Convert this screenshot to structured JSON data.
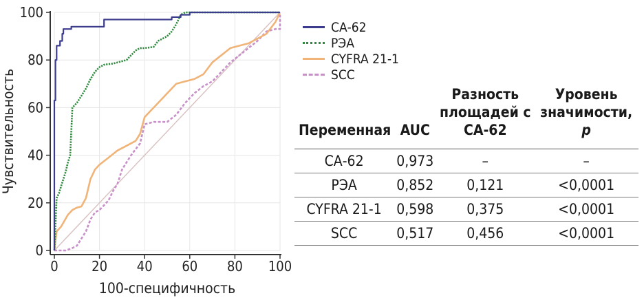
{
  "chart_data": {
    "type": "line",
    "xlabel": "100-специфичность",
    "ylabel": "Чувствительность",
    "xlim": [
      0,
      100
    ],
    "ylim": [
      0,
      100
    ],
    "xticks": [
      "0",
      "20",
      "40",
      "60",
      "80",
      "100"
    ],
    "yticks": [
      "0",
      "20",
      "40",
      "60",
      "80",
      "100"
    ],
    "grid": true,
    "legend_position": "right",
    "series": [
      {
        "name": "СА-62",
        "color": "#3b3d8c",
        "dash": "solid",
        "x": [
          0,
          0,
          0.5,
          0.5,
          1,
          1,
          2.5,
          2.5,
          3.5,
          3.5,
          4,
          4,
          7.5,
          7.5,
          22,
          22,
          52,
          52,
          56,
          56,
          60,
          60,
          100
        ],
        "y": [
          0,
          63,
          63,
          80,
          80,
          86,
          86,
          88,
          88,
          91,
          91,
          93,
          93,
          94,
          94,
          97,
          97,
          98,
          98,
          99,
          99,
          100,
          100
        ]
      },
      {
        "name": "РЭА",
        "color": "#2e8b3e",
        "dash": "dotted",
        "x": [
          0,
          1,
          2,
          3,
          5,
          6,
          7,
          7.5,
          8,
          10,
          12,
          14,
          16,
          18,
          19,
          20,
          22,
          26,
          28,
          32,
          34,
          36,
          38,
          40,
          44,
          46,
          50,
          52,
          54,
          56,
          58,
          100
        ],
        "y": [
          0,
          22,
          24,
          27,
          33,
          37,
          40,
          50,
          60,
          62,
          65,
          68,
          72,
          75,
          76,
          77,
          78,
          78.5,
          79,
          80,
          82,
          84,
          85,
          85,
          85.5,
          88,
          90,
          92,
          95,
          99,
          100,
          100
        ]
      },
      {
        "name": "CYFRA 21-1",
        "color": "#f0b478",
        "dash": "solid",
        "x": [
          0,
          1,
          3,
          6,
          8,
          10,
          12,
          14,
          16,
          17,
          18,
          20,
          24,
          28,
          32,
          36,
          38,
          40,
          43,
          46,
          50,
          54,
          58,
          62,
          66,
          70,
          74,
          78,
          82,
          86,
          90,
          94,
          98,
          100
        ],
        "y": [
          0,
          8,
          10,
          15,
          17,
          18,
          18.5,
          22,
          30,
          32,
          34,
          36,
          39,
          42,
          44,
          46,
          49,
          56,
          59,
          62,
          66,
          70,
          71,
          72,
          74,
          79,
          82,
          85,
          86,
          87,
          89,
          91,
          96,
          100
        ]
      },
      {
        "name": "SCC",
        "color": "#c890c8",
        "dash": "dashed",
        "x": [
          0,
          5,
          8,
          10,
          12,
          14,
          16,
          18,
          20,
          22,
          24,
          26,
          28,
          30,
          34,
          38,
          40,
          44,
          50,
          54,
          58,
          62,
          66,
          70,
          74,
          78,
          82,
          86,
          90,
          94,
          98,
          100,
          100
        ],
        "y": [
          0,
          0,
          1,
          2,
          5,
          8,
          13,
          16,
          17,
          19,
          21,
          25,
          28,
          34,
          40,
          45,
          53,
          54,
          54,
          57,
          62,
          66,
          69,
          71,
          75,
          79,
          82,
          85,
          88,
          92,
          93,
          93,
          99
        ]
      }
    ]
  },
  "table": {
    "headers": {
      "variable": "Переменная",
      "auc": "AUC",
      "diff": "Разность площадей с СА-62",
      "p_level": "Уровень значимости,",
      "p_symbol": "p"
    },
    "rows": [
      {
        "name": "СА-62",
        "auc": "0,973",
        "diff": "–",
        "p": "–"
      },
      {
        "name": "РЭА",
        "auc": "0,852",
        "diff": "0,121",
        "p": "<0,0001"
      },
      {
        "name": "CYFRA 21-1",
        "auc": "0,598",
        "diff": "0,375",
        "p": "<0,0001"
      },
      {
        "name": "SCC",
        "auc": "0,517",
        "diff": "0,456",
        "p": "<0,0001"
      }
    ]
  }
}
